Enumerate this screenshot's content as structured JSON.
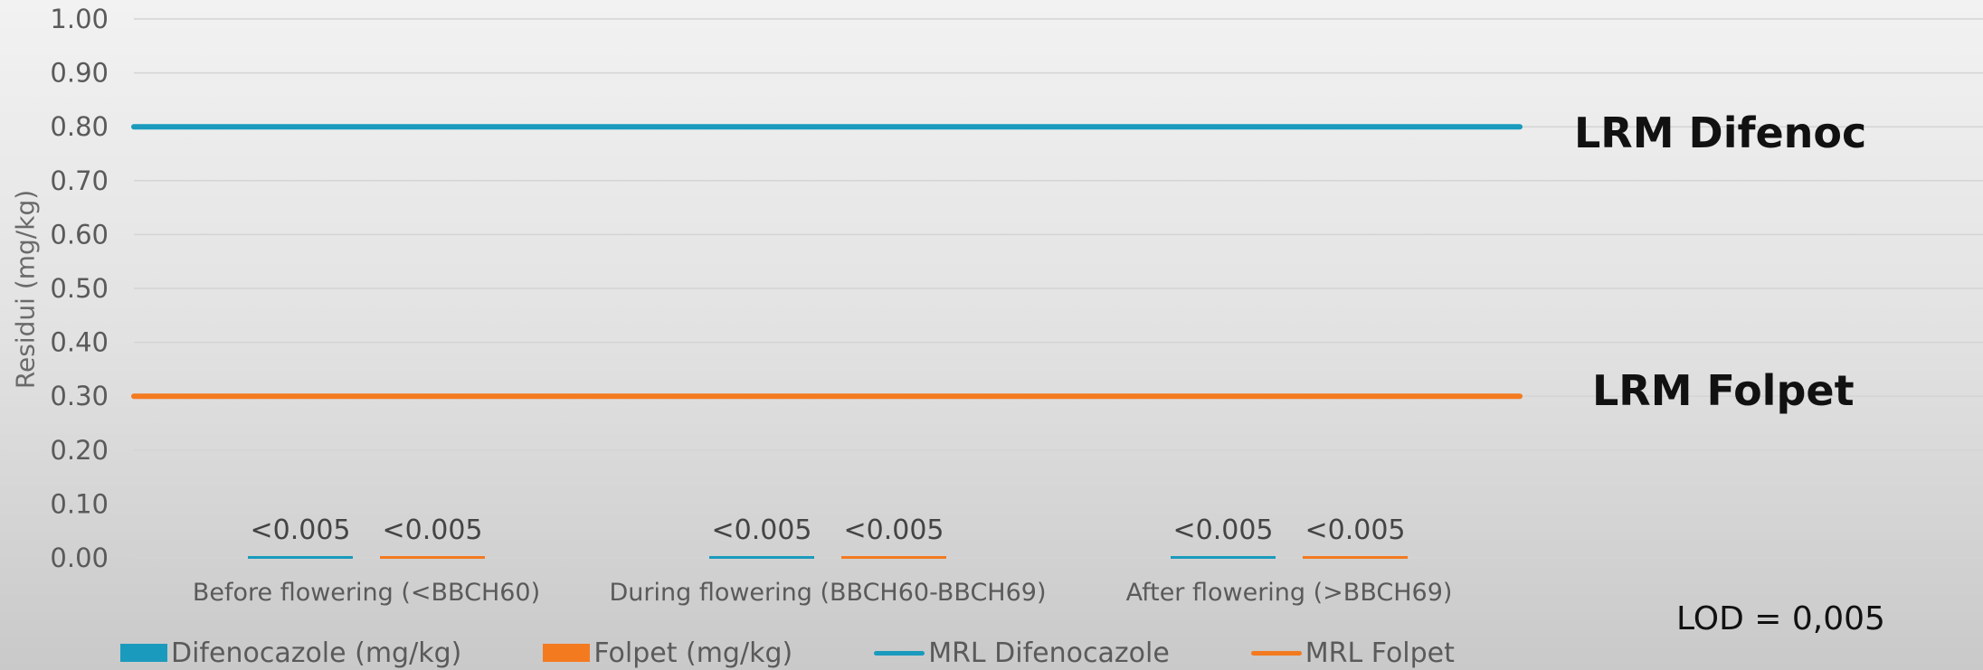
{
  "chart_data": {
    "type": "bar",
    "ylabel": "Residui (mg/kg)",
    "xlabel": "",
    "ylim": [
      0,
      1
    ],
    "yticks": [
      "0.00",
      "0.10",
      "0.20",
      "0.30",
      "0.40",
      "0.50",
      "0.60",
      "0.70",
      "0.80",
      "0.90",
      "1.00"
    ],
    "categories": [
      "Before flowering (<BBCH60)",
      "During flowering (BBCH60-BBCH69)",
      "After flowering (>BBCH69)"
    ],
    "series": [
      {
        "name": "Difenocazole (mg/kg)",
        "kind": "bar",
        "color": "#1a9bbd",
        "values": [
          0.005,
          0.005,
          0.005
        ],
        "labels": [
          "<0.005",
          "<0.005",
          "<0.005"
        ]
      },
      {
        "name": "Folpet (mg/kg)",
        "kind": "bar",
        "color": "#f47a20",
        "values": [
          0.005,
          0.005,
          0.005
        ],
        "labels": [
          "<0.005",
          "<0.005",
          "<0.005"
        ]
      },
      {
        "name": "MRL Difenocazole",
        "kind": "line",
        "color": "#1a9bbd",
        "value": 0.8
      },
      {
        "name": "MRL Folpet",
        "kind": "line",
        "color": "#f47a20",
        "value": 0.3
      }
    ],
    "annotations": {
      "mrl_difenoc": "LRM Difenoc",
      "mrl_folpet": "LRM Folpet",
      "lod": "LOD = 0,005"
    },
    "grid": true,
    "legend_position": "bottom"
  }
}
